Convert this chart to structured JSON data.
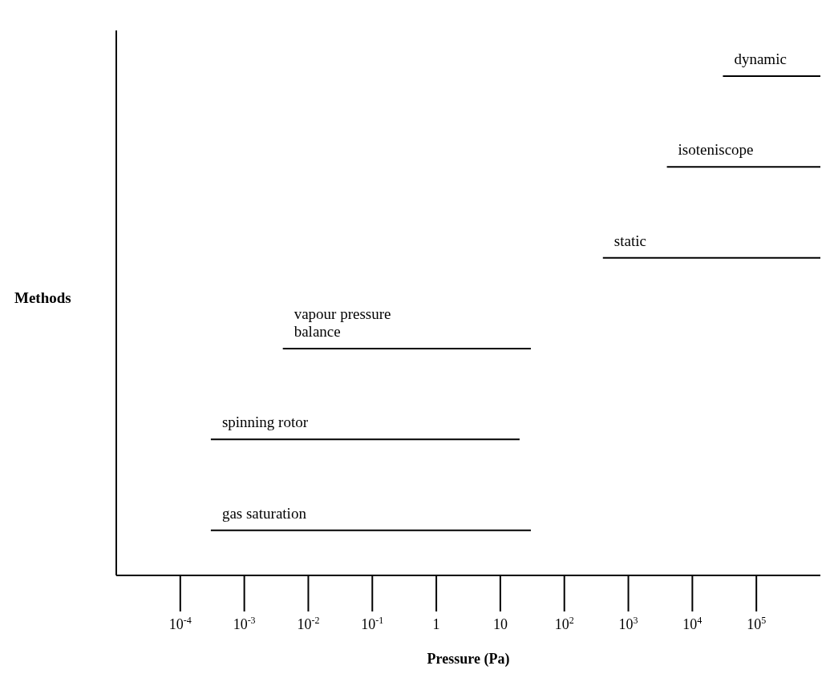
{
  "chart_data": {
    "type": "bar",
    "orientation": "horizontal",
    "xlabel": "Pressure (Pa)",
    "ylabel": "Methods",
    "categories": [
      "dynamic",
      "isoteniscope",
      "static",
      "vapour pressure balance",
      "spinning rotor",
      "gas saturation"
    ],
    "base": [
      30000,
      4000,
      400,
      0.004,
      0.0003,
      0.0003
    ],
    "values": [
      970000,
      996000,
      999600,
      30,
      20,
      30
    ],
    "color": "#000000",
    "log": "x",
    "xlim": [
      1e-05,
      1000000
    ],
    "xticks": [
      {
        "value": 0.0001,
        "label": "10$^{-4}$"
      },
      {
        "value": 0.001,
        "label": "10$^{-3}$"
      },
      {
        "value": 0.01,
        "label": "10$^{-2}$"
      },
      {
        "value": 0.1,
        "label": "10$^{-1}$"
      },
      1,
      10,
      {
        "value": 100,
        "label": "10$^{2}$"
      },
      {
        "value": 1000,
        "label": "10$^{3}$"
      },
      {
        "value": 10000,
        "label": "10$^{4}$"
      },
      {
        "value": 100000,
        "label": "10$^{5}$"
      }
    ],
    "grid": false,
    "legend": false
  }
}
